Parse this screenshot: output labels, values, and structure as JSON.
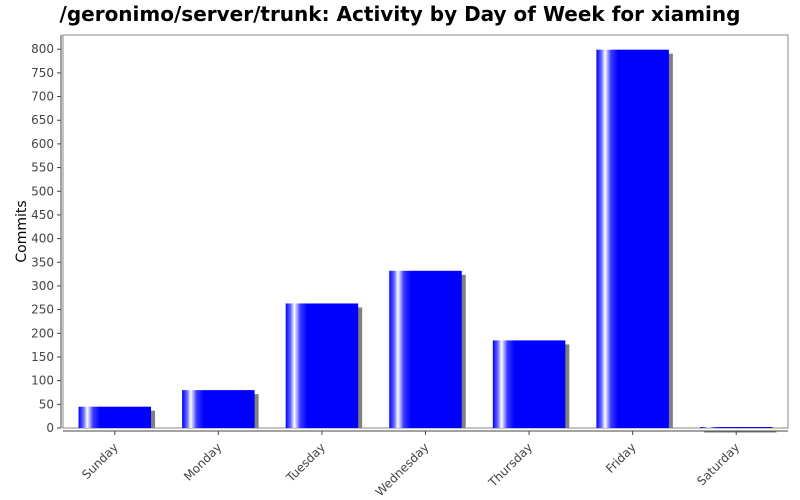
{
  "chart_data": {
    "type": "bar",
    "title": "/geronimo/server/trunk: Activity by Day of Week for xiaming",
    "xlabel": "",
    "ylabel": "Commits",
    "categories": [
      "Sunday",
      "Monday",
      "Tuesday",
      "Wednesday",
      "Thursday",
      "Friday",
      "Saturday"
    ],
    "values": [
      45,
      80,
      263,
      332,
      185,
      799,
      1
    ],
    "ylim": [
      0,
      830
    ],
    "yticks": [
      0,
      50,
      100,
      150,
      200,
      250,
      300,
      350,
      400,
      450,
      500,
      550,
      600,
      650,
      700,
      750,
      800
    ],
    "grid": false,
    "legend": "none",
    "colors": {
      "bar": "#0000ff",
      "bar_highlight": "#ffffff",
      "shadow": "#808080",
      "axis": "#888888"
    }
  }
}
